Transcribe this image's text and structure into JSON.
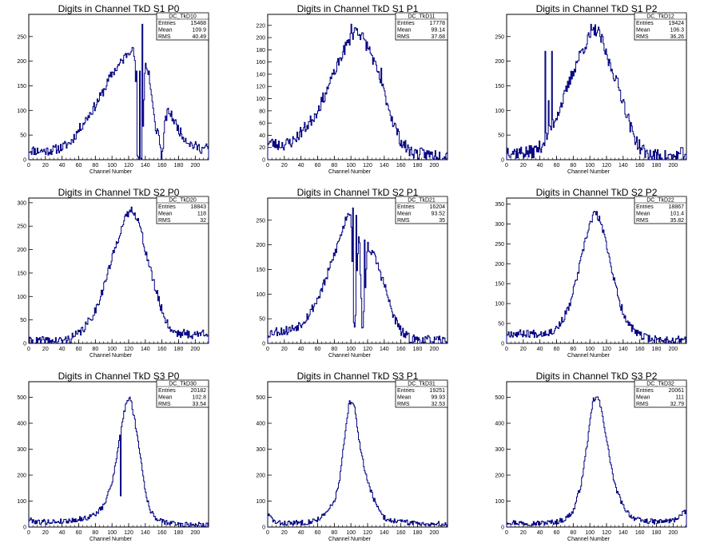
{
  "chart_data": [
    {
      "type": "histogram",
      "title": "Digits in Channel TkD S1 P0",
      "xlabel": "Channel Number",
      "xlim": [
        0,
        216
      ],
      "ylim": [
        0,
        295
      ],
      "xticks": [
        0,
        20,
        40,
        60,
        80,
        100,
        120,
        140,
        160,
        180,
        200
      ],
      "yticks": [
        0,
        50,
        100,
        150,
        200,
        250
      ],
      "stats": {
        "name": "DC_TkD10",
        "entries": "15468",
        "mean": "109.9",
        "rms": "40.49"
      },
      "profile": [
        [
          0,
          20
        ],
        [
          10,
          18
        ],
        [
          20,
          18
        ],
        [
          30,
          20
        ],
        [
          40,
          25
        ],
        [
          50,
          35
        ],
        [
          60,
          60
        ],
        [
          70,
          85
        ],
        [
          80,
          110
        ],
        [
          90,
          140
        ],
        [
          100,
          175
        ],
        [
          110,
          195
        ],
        [
          118,
          215
        ],
        [
          124,
          230
        ],
        [
          128,
          200
        ],
        [
          130,
          0
        ],
        [
          134,
          0
        ],
        [
          136,
          0
        ],
        [
          140,
          200
        ],
        [
          146,
          150
        ],
        [
          152,
          65
        ],
        [
          156,
          55
        ],
        [
          160,
          0
        ],
        [
          164,
          80
        ],
        [
          168,
          100
        ],
        [
          176,
          75
        ],
        [
          184,
          50
        ],
        [
          196,
          30
        ],
        [
          208,
          22
        ],
        [
          216,
          25
        ]
      ],
      "noise": 10,
      "spikes": [
        [
          129,
          180
        ],
        [
          133,
          180
        ],
        [
          136,
          275
        ],
        [
          144,
          180
        ]
      ],
      "seed": 11
    },
    {
      "type": "histogram",
      "title": "Digits in Channel TkD S1 P1",
      "xlabel": "Channel Number",
      "xlim": [
        0,
        216
      ],
      "ylim": [
        0,
        238
      ],
      "xticks": [
        0,
        20,
        40,
        60,
        80,
        100,
        120,
        140,
        160,
        180,
        200
      ],
      "yticks": [
        0,
        20,
        40,
        60,
        80,
        100,
        120,
        140,
        160,
        180,
        200,
        220
      ],
      "stats": {
        "name": "DC_TkD11",
        "entries": "17778",
        "mean": "99.14",
        "rms": "37.68"
      },
      "profile": [
        [
          0,
          30
        ],
        [
          10,
          25
        ],
        [
          20,
          25
        ],
        [
          30,
          30
        ],
        [
          40,
          45
        ],
        [
          50,
          60
        ],
        [
          60,
          80
        ],
        [
          70,
          110
        ],
        [
          80,
          140
        ],
        [
          90,
          175
        ],
        [
          100,
          200
        ],
        [
          106,
          215
        ],
        [
          112,
          205
        ],
        [
          118,
          190
        ],
        [
          124,
          175
        ],
        [
          130,
          150
        ],
        [
          140,
          110
        ],
        [
          150,
          65
        ],
        [
          160,
          30
        ],
        [
          170,
          15
        ],
        [
          180,
          10
        ],
        [
          200,
          8
        ],
        [
          216,
          8
        ]
      ],
      "noise": 10,
      "spikes": [
        [
          60,
          80
        ],
        [
          78,
          140
        ],
        [
          100,
          222
        ],
        [
          136,
          150
        ]
      ],
      "seed": 23
    },
    {
      "type": "histogram",
      "title": "Digits in Channel TkD S1 P2",
      "xlabel": "Channel Number",
      "xlim": [
        0,
        216
      ],
      "ylim": [
        0,
        295
      ],
      "xticks": [
        0,
        20,
        40,
        60,
        80,
        100,
        120,
        140,
        160,
        180,
        200
      ],
      "yticks": [
        0,
        50,
        100,
        150,
        200,
        250
      ],
      "stats": {
        "name": "DC_TkD12",
        "entries": "19424",
        "mean": "106.3",
        "rms": "36.26"
      },
      "profile": [
        [
          0,
          20
        ],
        [
          10,
          15
        ],
        [
          20,
          15
        ],
        [
          30,
          15
        ],
        [
          40,
          25
        ],
        [
          50,
          50
        ],
        [
          60,
          90
        ],
        [
          70,
          130
        ],
        [
          80,
          180
        ],
        [
          90,
          220
        ],
        [
          100,
          250
        ],
        [
          108,
          265
        ],
        [
          114,
          245
        ],
        [
          120,
          210
        ],
        [
          130,
          170
        ],
        [
          140,
          120
        ],
        [
          150,
          60
        ],
        [
          160,
          25
        ],
        [
          170,
          10
        ],
        [
          180,
          8
        ],
        [
          200,
          5
        ],
        [
          216,
          15
        ]
      ],
      "noise": 14,
      "spikes": [
        [
          46,
          220
        ],
        [
          50,
          120
        ],
        [
          54,
          220
        ],
        [
          101,
          275
        ]
      ],
      "seed": 37
    },
    {
      "type": "histogram",
      "title": "Digits in Channel TkD S2 P0",
      "xlabel": "Channel Number",
      "xlim": [
        0,
        216
      ],
      "ylim": [
        0,
        310
      ],
      "xticks": [
        0,
        20,
        40,
        60,
        80,
        100,
        120,
        140,
        160,
        180,
        200
      ],
      "yticks": [
        0,
        50,
        100,
        150,
        200,
        250,
        300
      ],
      "stats": {
        "name": "DC_TkD20",
        "entries": "18843",
        "mean": "118",
        "rms": "32"
      },
      "profile": [
        [
          0,
          3
        ],
        [
          20,
          5
        ],
        [
          40,
          5
        ],
        [
          50,
          10
        ],
        [
          60,
          20
        ],
        [
          70,
          40
        ],
        [
          80,
          70
        ],
        [
          90,
          120
        ],
        [
          100,
          180
        ],
        [
          110,
          240
        ],
        [
          120,
          280
        ],
        [
          126,
          285
        ],
        [
          132,
          260
        ],
        [
          140,
          200
        ],
        [
          150,
          130
        ],
        [
          160,
          70
        ],
        [
          170,
          30
        ],
        [
          180,
          22
        ],
        [
          190,
          20
        ],
        [
          200,
          18
        ],
        [
          216,
          25
        ]
      ],
      "noise": 10,
      "spikes": [],
      "seed": 41
    },
    {
      "type": "histogram",
      "title": "Digits in Channel TkD S2 P1",
      "xlabel": "Channel Number",
      "xlim": [
        0,
        216
      ],
      "ylim": [
        0,
        295
      ],
      "xticks": [
        0,
        20,
        40,
        60,
        80,
        100,
        120,
        140,
        160,
        180,
        200
      ],
      "yticks": [
        0,
        50,
        100,
        150,
        200,
        250
      ],
      "stats": {
        "name": "DC_TkD21",
        "entries": "16204",
        "mean": "93.52",
        "rms": "35"
      },
      "profile": [
        [
          0,
          20
        ],
        [
          10,
          25
        ],
        [
          20,
          25
        ],
        [
          30,
          30
        ],
        [
          40,
          40
        ],
        [
          50,
          60
        ],
        [
          60,
          90
        ],
        [
          70,
          130
        ],
        [
          80,
          180
        ],
        [
          90,
          230
        ],
        [
          96,
          265
        ],
        [
          100,
          270
        ],
        [
          104,
          10
        ],
        [
          110,
          230
        ],
        [
          114,
          10
        ],
        [
          120,
          200
        ],
        [
          130,
          170
        ],
        [
          140,
          120
        ],
        [
          150,
          60
        ],
        [
          160,
          25
        ],
        [
          170,
          10
        ],
        [
          180,
          8
        ],
        [
          200,
          5
        ],
        [
          216,
          5
        ]
      ],
      "noise": 10,
      "spikes": [
        [
          98,
          260
        ],
        [
          102,
          275
        ],
        [
          106,
          260
        ],
        [
          116,
          210
        ]
      ],
      "seed": 53
    },
    {
      "type": "histogram",
      "title": "Digits in Channel TkD S2 P2",
      "xlabel": "Channel Number",
      "xlim": [
        0,
        216
      ],
      "ylim": [
        0,
        365
      ],
      "xticks": [
        0,
        20,
        40,
        60,
        80,
        100,
        120,
        140,
        160,
        180,
        200
      ],
      "yticks": [
        0,
        50,
        100,
        150,
        200,
        250,
        300,
        350
      ],
      "stats": {
        "name": "DC_TkD22",
        "entries": "18867",
        "mean": "101.4",
        "rms": "35.82"
      },
      "profile": [
        [
          0,
          25
        ],
        [
          20,
          25
        ],
        [
          40,
          25
        ],
        [
          55,
          30
        ],
        [
          65,
          50
        ],
        [
          75,
          90
        ],
        [
          85,
          170
        ],
        [
          95,
          260
        ],
        [
          100,
          300
        ],
        [
          106,
          330
        ],
        [
          112,
          310
        ],
        [
          120,
          250
        ],
        [
          128,
          170
        ],
        [
          136,
          100
        ],
        [
          146,
          50
        ],
        [
          156,
          25
        ],
        [
          166,
          15
        ],
        [
          180,
          10
        ],
        [
          200,
          8
        ],
        [
          216,
          10
        ]
      ],
      "noise": 10,
      "spikes": [],
      "seed": 67
    },
    {
      "type": "histogram",
      "title": "Digits in Channel TkD S3 P0",
      "xlabel": "Channel Number",
      "xlim": [
        0,
        216
      ],
      "ylim": [
        0,
        560
      ],
      "xticks": [
        0,
        20,
        40,
        60,
        80,
        100,
        120,
        140,
        160,
        180,
        200
      ],
      "yticks": [
        0,
        100,
        200,
        300,
        400,
        500
      ],
      "stats": {
        "name": "DC_TkD30",
        "entries": "20182",
        "mean": "102.8",
        "rms": "33.54"
      },
      "profile": [
        [
          0,
          30
        ],
        [
          10,
          20
        ],
        [
          30,
          20
        ],
        [
          50,
          25
        ],
        [
          70,
          35
        ],
        [
          80,
          50
        ],
        [
          90,
          80
        ],
        [
          100,
          170
        ],
        [
          106,
          280
        ],
        [
          112,
          400
        ],
        [
          118,
          490
        ],
        [
          122,
          500
        ],
        [
          128,
          400
        ],
        [
          134,
          280
        ],
        [
          140,
          140
        ],
        [
          146,
          60
        ],
        [
          156,
          25
        ],
        [
          170,
          15
        ],
        [
          190,
          10
        ],
        [
          216,
          10
        ]
      ],
      "noise": 10,
      "spikes": [
        [
          110,
          120
        ]
      ],
      "seed": 79
    },
    {
      "type": "histogram",
      "title": "Digits in Channel TkD S3 P1",
      "xlabel": "Channel Number",
      "xlim": [
        0,
        216
      ],
      "ylim": [
        0,
        560
      ],
      "xticks": [
        0,
        20,
        40,
        60,
        80,
        100,
        120,
        140,
        160,
        180,
        200
      ],
      "yticks": [
        0,
        100,
        200,
        300,
        400,
        500
      ],
      "stats": {
        "name": "DC_TkD31",
        "entries": "19251",
        "mean": "99.93",
        "rms": "32.53"
      },
      "profile": [
        [
          0,
          50
        ],
        [
          10,
          15
        ],
        [
          30,
          15
        ],
        [
          50,
          20
        ],
        [
          60,
          30
        ],
        [
          70,
          50
        ],
        [
          80,
          100
        ],
        [
          86,
          170
        ],
        [
          92,
          330
        ],
        [
          98,
          480
        ],
        [
          104,
          470
        ],
        [
          110,
          330
        ],
        [
          118,
          200
        ],
        [
          126,
          120
        ],
        [
          134,
          60
        ],
        [
          142,
          30
        ],
        [
          160,
          20
        ],
        [
          180,
          15
        ],
        [
          216,
          10
        ]
      ],
      "noise": 10,
      "spikes": [
        [
          85,
          170
        ]
      ],
      "seed": 83
    },
    {
      "type": "histogram",
      "title": "Digits in Channel TkD S3 P2",
      "xlabel": "Channel Number",
      "xlim": [
        0,
        216
      ],
      "ylim": [
        0,
        560
      ],
      "xticks": [
        0,
        20,
        40,
        60,
        80,
        100,
        120,
        140,
        160,
        180,
        200
      ],
      "yticks": [
        0,
        100,
        200,
        300,
        400,
        500
      ],
      "stats": {
        "name": "DC_TkD32",
        "entries": "20061",
        "mean": "111",
        "rms": "32.79"
      },
      "profile": [
        [
          0,
          20
        ],
        [
          20,
          15
        ],
        [
          40,
          15
        ],
        [
          60,
          20
        ],
        [
          70,
          30
        ],
        [
          80,
          60
        ],
        [
          90,
          170
        ],
        [
          98,
          350
        ],
        [
          104,
          490
        ],
        [
          110,
          500
        ],
        [
          116,
          420
        ],
        [
          122,
          300
        ],
        [
          130,
          160
        ],
        [
          140,
          80
        ],
        [
          150,
          40
        ],
        [
          160,
          25
        ],
        [
          180,
          20
        ],
        [
          200,
          25
        ],
        [
          216,
          60
        ]
      ],
      "noise": 10,
      "spikes": [],
      "seed": 97
    }
  ],
  "style": {
    "line_color": "#000080",
    "axis_color": "#000000",
    "background": "#ffffff"
  },
  "stat_labels": {
    "entries": "Entries",
    "mean": "Mean",
    "rms": "RMS"
  }
}
